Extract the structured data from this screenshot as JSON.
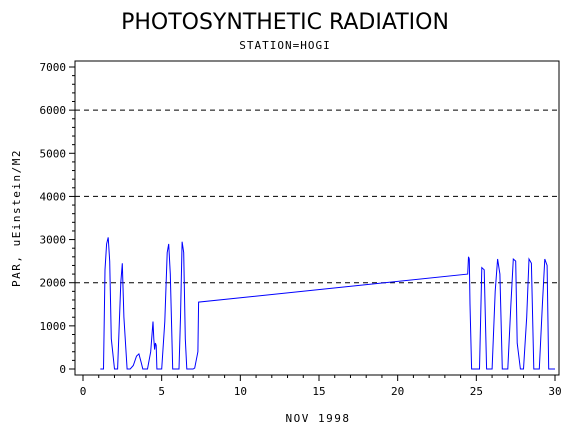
{
  "chart_data": {
    "type": "line",
    "title": "PHOTOSYNTHETIC RADIATION",
    "subtitle": "STATION=HOGI",
    "xlabel": "NOV 1998",
    "ylabel": "PAR, uEinstein/M2",
    "xlim": [
      0,
      30
    ],
    "ylim": [
      0,
      7000
    ],
    "x_ticks": [
      0,
      5,
      10,
      15,
      20,
      25,
      30
    ],
    "y_ticks": [
      0,
      1000,
      2000,
      3000,
      4000,
      5000,
      6000,
      7000
    ],
    "reference_lines": [
      2000,
      4000,
      6000
    ],
    "grid": false,
    "legend": "none",
    "colors": {
      "series": "#0000ff",
      "axes": "#000000",
      "reference": "#000000"
    },
    "series": [
      {
        "x": [
          1.1,
          1.3,
          1.4,
          1.5,
          1.6,
          1.7,
          1.8,
          2.0,
          2.2,
          2.4,
          2.5,
          2.6,
          2.8,
          3.0,
          3.2,
          3.4,
          3.55,
          3.7,
          3.8,
          3.9,
          4.1,
          4.3,
          4.45,
          4.5,
          4.55,
          4.6,
          4.65,
          4.7,
          4.8,
          5.0,
          5.2,
          5.35,
          5.45,
          5.55,
          5.7,
          5.9,
          6.1,
          6.2,
          6.3,
          6.4,
          6.5,
          6.6,
          6.8,
          7.0,
          7.1,
          7.3,
          7.35,
          24.45,
          24.5,
          24.55,
          24.6,
          24.7,
          24.9,
          25.2,
          25.35,
          25.5,
          25.65,
          25.8,
          26.0,
          26.2,
          26.35,
          26.5,
          26.65,
          26.8,
          27.0,
          27.2,
          27.35,
          27.5,
          27.6,
          27.8,
          28.0,
          28.2,
          28.35,
          28.5,
          28.65,
          28.8,
          29.0,
          29.2,
          29.35,
          29.5,
          29.6,
          29.8,
          30.0
        ],
        "y": [
          0,
          0,
          2300,
          2900,
          3050,
          2500,
          700,
          0,
          0,
          2000,
          2450,
          1200,
          0,
          0,
          80,
          300,
          350,
          150,
          0,
          0,
          0,
          400,
          1100,
          700,
          450,
          600,
          550,
          0,
          0,
          0,
          1100,
          2700,
          2900,
          2200,
          0,
          0,
          0,
          1200,
          2950,
          2700,
          700,
          0,
          0,
          0,
          20,
          400,
          1550,
          2200,
          2600,
          2550,
          1500,
          0,
          0,
          0,
          2350,
          2300,
          0,
          0,
          0,
          1800,
          2550,
          2200,
          0,
          0,
          0,
          1500,
          2550,
          2500,
          600,
          0,
          0,
          1200,
          2550,
          2450,
          0,
          0,
          0,
          1500,
          2550,
          2400,
          0,
          0,
          0
        ]
      }
    ]
  }
}
